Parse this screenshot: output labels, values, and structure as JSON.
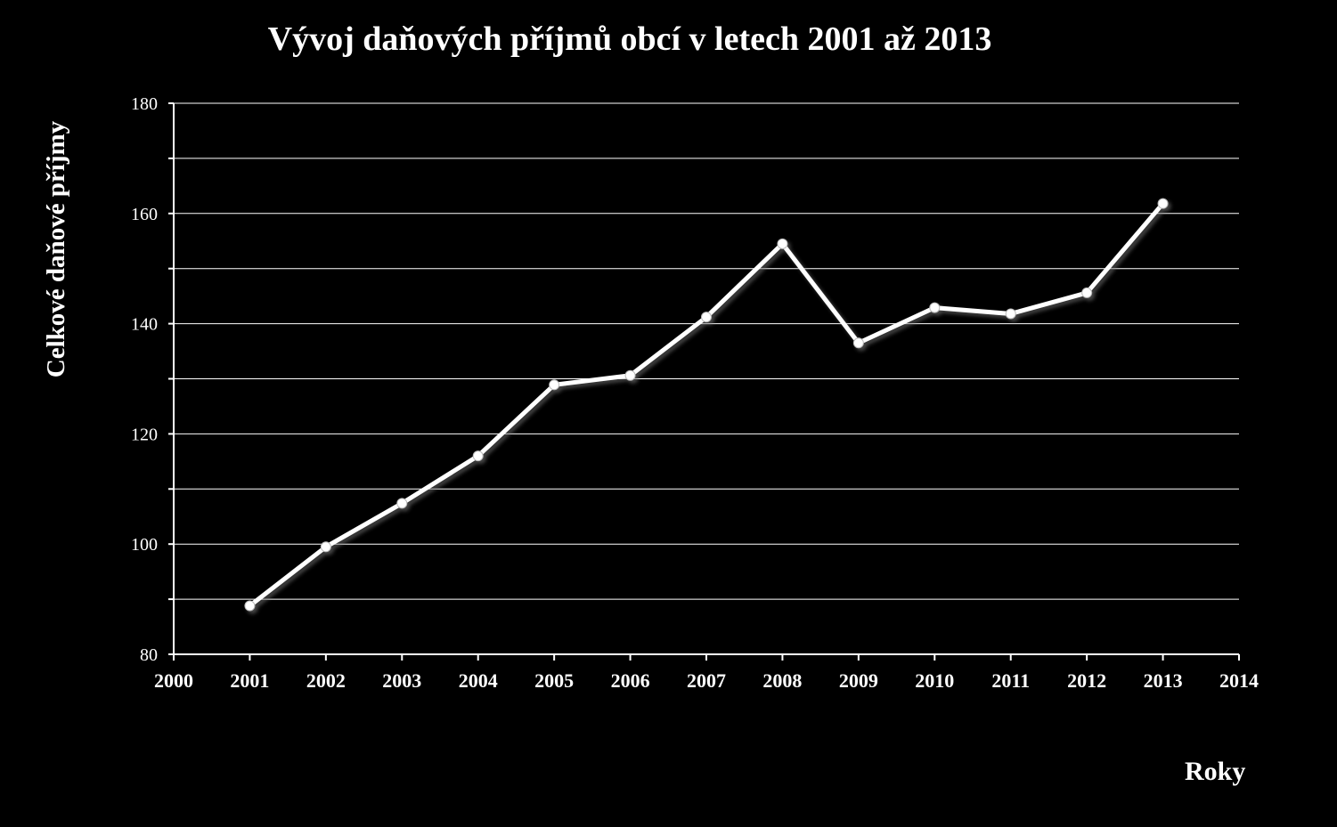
{
  "chart_data": {
    "type": "line",
    "title": "Vývoj daňových příjmů obcí v letech 2001 až 2013",
    "xlabel": "Roky",
    "ylabel": "Celkové daňové příjmy",
    "xlim": [
      2000,
      2014
    ],
    "ylim": [
      80,
      180
    ],
    "x_ticks": [
      "2000",
      "2001",
      "2002",
      "2003",
      "2004",
      "2005",
      "2006",
      "2007",
      "2008",
      "2009",
      "2010",
      "2011",
      "2012",
      "2013",
      "2014"
    ],
    "y_ticks": [
      "80",
      "100",
      "120",
      "140",
      "160",
      "180"
    ],
    "grid": true,
    "series": [
      {
        "x": [
          2001,
          2002,
          2003,
          2004,
          2005,
          2006,
          2007,
          2008,
          2009,
          2010,
          2011,
          2012,
          2013
        ],
        "values": [
          88.8,
          99.5,
          107.4,
          116.0,
          128.9,
          130.6,
          141.2,
          154.5,
          136.5,
          142.9,
          141.8,
          145.6,
          161.8
        ]
      }
    ],
    "colors": {
      "background": "#000000",
      "line": "#ffffff",
      "grid": "#ffffff"
    }
  }
}
